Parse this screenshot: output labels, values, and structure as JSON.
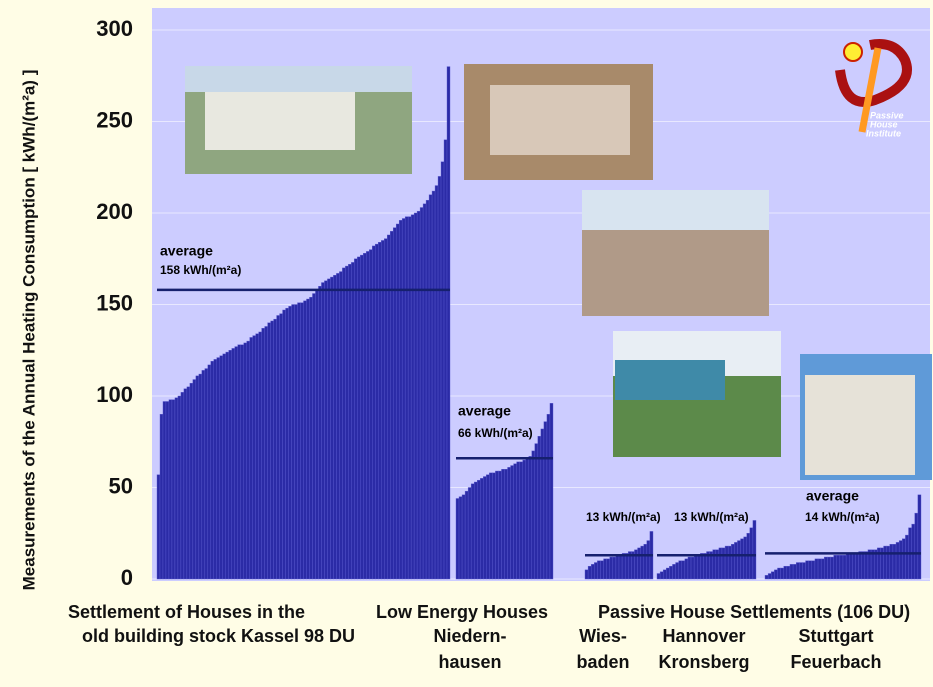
{
  "chart_data": {
    "type": "bar",
    "y_label": "Measurements of the Annual Heating Consumption  [ kWh/(m²a) ]",
    "ylim": [
      0,
      300
    ],
    "yticks": [
      0,
      50,
      100,
      150,
      200,
      250,
      300
    ],
    "grid": true,
    "color": "#2b2ba6",
    "average_color": "#16206e",
    "logo": [
      "Passive",
      "House",
      "Institute"
    ],
    "groups": [
      {
        "labels": [
          "Settlement of Houses in the",
          "old building stock Kassel 98 DU"
        ],
        "average_title": "average",
        "average": {
          "value": 158,
          "label": "158 kWh/(m²a)"
        },
        "values": [
          57,
          90,
          97,
          97,
          98,
          98,
          99,
          100,
          102,
          104,
          105,
          107,
          109,
          111,
          112,
          114,
          115,
          117,
          119,
          120,
          121,
          122,
          123,
          124,
          125,
          126,
          127,
          128,
          128,
          129,
          130,
          132,
          133,
          134,
          135,
          137,
          138,
          140,
          141,
          142,
          144,
          145,
          147,
          148,
          149,
          150,
          150,
          151,
          151,
          152,
          153,
          154,
          156,
          158,
          160,
          162,
          163,
          164,
          165,
          166,
          167,
          168,
          170,
          171,
          172,
          173,
          175,
          176,
          177,
          178,
          179,
          180,
          182,
          183,
          184,
          185,
          186,
          188,
          190,
          192,
          194,
          196,
          197,
          198,
          198,
          199,
          200,
          201,
          203,
          205,
          207,
          210,
          212,
          215,
          220,
          228,
          240,
          280
        ]
      },
      {
        "labels": [
          "Low Energy Houses",
          "Niedern-",
          "hausen"
        ],
        "average_title": "average",
        "average": {
          "value": 66,
          "label": "66 kWh/(m²a)"
        },
        "values": [
          44,
          45,
          46,
          48,
          50,
          52,
          53,
          54,
          55,
          56,
          57,
          58,
          58,
          59,
          59,
          60,
          60,
          61,
          62,
          63,
          64,
          64,
          65,
          66,
          67,
          70,
          74,
          78,
          82,
          86,
          90,
          96
        ]
      },
      {
        "labels": [
          "Passive House Settlements (106 DU)",
          "Wies-",
          "baden"
        ],
        "average": {
          "value": 13,
          "label": "13 kWh/(m²a)"
        },
        "values": [
          5,
          7,
          8,
          9,
          10,
          10,
          11,
          11,
          12,
          12,
          13,
          13,
          14,
          14,
          15,
          15,
          16,
          17,
          18,
          19,
          21,
          26
        ]
      },
      {
        "labels": [
          "Hannover",
          "Kronsberg"
        ],
        "average": {
          "value": 13,
          "label": "13 kWh/(m²a)"
        },
        "values": [
          3,
          4,
          5,
          6,
          7,
          8,
          9,
          10,
          10,
          11,
          12,
          12,
          13,
          13,
          14,
          14,
          15,
          15,
          16,
          16,
          17,
          17,
          18,
          18,
          19,
          20,
          21,
          22,
          23,
          25,
          28,
          32
        ]
      },
      {
        "labels": [
          "Stuttgart",
          "Feuerbach"
        ],
        "average_title": "average",
        "average": {
          "value": 14,
          "label": "14 kWh/(m²a)"
        },
        "values": [
          2,
          3,
          4,
          5,
          6,
          6,
          7,
          7,
          8,
          8,
          9,
          9,
          9,
          10,
          10,
          10,
          11,
          11,
          11,
          12,
          12,
          12,
          13,
          13,
          13,
          13,
          14,
          14,
          14,
          14,
          15,
          15,
          15,
          16,
          16,
          16,
          17,
          17,
          18,
          18,
          19,
          19,
          20,
          21,
          22,
          24,
          28,
          30,
          36,
          46
        ]
      }
    ]
  }
}
